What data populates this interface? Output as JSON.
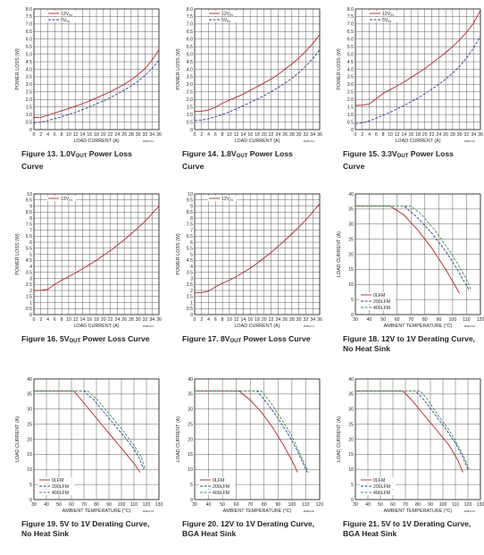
{
  "charts": [
    {
      "type": "line",
      "figure_label": "Figure 13.",
      "title_parts": [
        "1.0V",
        "OUT",
        " Power Loss Curve"
      ],
      "xlabel": "LOAD CURRENT (A)",
      "ylabel": "POWER LOSS (W)",
      "xlim": [
        0,
        36
      ],
      "ylim": [
        0,
        8
      ],
      "ystep": 0.5,
      "x_ticks": [
        0,
        2,
        4,
        6,
        8,
        10,
        12,
        14,
        16,
        18,
        20,
        22,
        24,
        26,
        28,
        30,
        32,
        34,
        36
      ],
      "y_ticks": [
        "0",
        "0.5",
        "1.0",
        "1.5",
        "2.0",
        "2.5",
        "3.0",
        "3.5",
        "4.0",
        "4.5",
        "5.0",
        "5.5",
        "6.0",
        "6.5",
        "7.0",
        "7.5",
        "8.0"
      ],
      "legend": [
        "12V",
        "5V"
      ],
      "legend_sub": "IN",
      "code": "4628A F13",
      "series": [
        {
          "name": "12VIN",
          "style": "solid",
          "color": "#b0232a",
          "x": [
            0,
            2,
            4,
            6,
            8,
            10,
            12,
            14,
            16,
            18,
            20,
            22,
            24,
            26,
            28,
            30,
            32,
            34,
            36
          ],
          "y": [
            0.8,
            0.82,
            0.95,
            1.1,
            1.25,
            1.4,
            1.55,
            1.72,
            1.9,
            2.1,
            2.3,
            2.52,
            2.75,
            3.0,
            3.3,
            3.65,
            4.05,
            4.6,
            5.3
          ]
        },
        {
          "name": "5VIN",
          "style": "dash",
          "color": "#2e3d8f",
          "x": [
            0,
            2,
            4,
            6,
            8,
            10,
            12,
            14,
            16,
            18,
            20,
            22,
            24,
            26,
            28,
            30,
            32,
            34,
            36
          ],
          "y": [
            0.45,
            0.5,
            0.6,
            0.72,
            0.85,
            1.0,
            1.15,
            1.32,
            1.5,
            1.7,
            1.9,
            2.12,
            2.36,
            2.62,
            2.9,
            3.22,
            3.6,
            4.05,
            4.6
          ]
        }
      ]
    },
    {
      "type": "line",
      "figure_label": "Figure 14.",
      "title_parts": [
        "1.8V",
        "OUT",
        " Power Loss Curve"
      ],
      "xlabel": "LOAD CURRENT (A)",
      "ylabel": "POWER LOSS (W)",
      "xlim": [
        0,
        36
      ],
      "ylim": [
        0,
        8
      ],
      "ystep": 0.5,
      "x_ticks": [
        0,
        2,
        4,
        6,
        8,
        10,
        12,
        14,
        16,
        18,
        20,
        22,
        24,
        26,
        28,
        30,
        32,
        34,
        36
      ],
      "y_ticks": [
        "0",
        "0.5",
        "1.0",
        "1.5",
        "2.0",
        "2.5",
        "3.0",
        "3.5",
        "4.0",
        "4.5",
        "5.0",
        "5.5",
        "6.0",
        "6.5",
        "7.0",
        "7.5",
        "8.0"
      ],
      "legend": [
        "12V",
        "5V"
      ],
      "legend_sub": "IN",
      "code": "4628A F14",
      "series": [
        {
          "name": "12VIN",
          "style": "solid",
          "color": "#b0232a",
          "x": [
            0,
            2,
            4,
            6,
            8,
            10,
            12,
            14,
            16,
            18,
            20,
            22,
            24,
            26,
            28,
            30,
            32,
            34,
            36
          ],
          "y": [
            1.2,
            1.22,
            1.3,
            1.48,
            1.75,
            1.95,
            2.15,
            2.35,
            2.6,
            2.85,
            3.1,
            3.35,
            3.65,
            4.0,
            4.35,
            4.75,
            5.2,
            5.7,
            6.3
          ]
        },
        {
          "name": "5VIN",
          "style": "dash",
          "color": "#2e3d8f",
          "x": [
            0,
            2,
            4,
            6,
            8,
            10,
            12,
            14,
            16,
            18,
            20,
            22,
            24,
            26,
            28,
            30,
            32,
            34,
            36
          ],
          "y": [
            0.6,
            0.63,
            0.72,
            0.85,
            1.0,
            1.18,
            1.38,
            1.58,
            1.8,
            2.02,
            2.25,
            2.5,
            2.78,
            3.08,
            3.4,
            3.78,
            4.2,
            4.7,
            5.3
          ]
        }
      ]
    },
    {
      "type": "line",
      "figure_label": "Figure 15.",
      "title_parts": [
        "3.3V",
        "OUT",
        " Power Loss Curve"
      ],
      "xlabel": "LOAD CURRENT (A)",
      "ylabel": "POWER LOSS (W)",
      "xlim": [
        0,
        36
      ],
      "ylim": [
        0,
        8
      ],
      "ystep": 0.5,
      "x_ticks": [
        0,
        2,
        4,
        6,
        8,
        10,
        12,
        14,
        16,
        18,
        20,
        22,
        24,
        26,
        28,
        30,
        32,
        34,
        36
      ],
      "y_ticks": [
        "0",
        "0.5",
        "1.0",
        "1.5",
        "2.0",
        "2.5",
        "3.0",
        "3.5",
        "4.0",
        "4.5",
        "5.0",
        "5.5",
        "6.0",
        "6.5",
        "7.0",
        "7.5",
        "8.0"
      ],
      "legend": [
        "12V",
        "5V"
      ],
      "legend_sub": "IN",
      "code": "4628A F15",
      "series": [
        {
          "name": "12VIN",
          "style": "solid",
          "color": "#b0232a",
          "x": [
            0,
            2,
            4,
            6,
            8,
            10,
            12,
            14,
            16,
            18,
            20,
            22,
            24,
            26,
            28,
            30,
            32,
            34,
            36
          ],
          "y": [
            1.6,
            1.62,
            1.7,
            2.05,
            2.4,
            2.65,
            2.9,
            3.15,
            3.45,
            3.75,
            4.05,
            4.4,
            4.75,
            5.1,
            5.5,
            5.95,
            6.45,
            7.05,
            7.9
          ]
        },
        {
          "name": "5VIN",
          "style": "dash",
          "color": "#2e3d8f",
          "x": [
            0,
            2,
            4,
            6,
            8,
            10,
            12,
            14,
            16,
            18,
            20,
            22,
            24,
            26,
            28,
            30,
            32,
            34,
            36
          ],
          "y": [
            0.4,
            0.45,
            0.58,
            0.75,
            0.95,
            1.15,
            1.38,
            1.6,
            1.85,
            2.1,
            2.38,
            2.68,
            3.0,
            3.35,
            3.75,
            4.2,
            4.75,
            5.4,
            6.2
          ]
        }
      ]
    },
    {
      "type": "line",
      "figure_label": "Figure 16.",
      "title_parts": [
        "5V",
        "OUT",
        " Power Loss Curve"
      ],
      "xlabel": "LOAD CURRENT (A)",
      "ylabel": "POWER LOSS (W)",
      "xlim": [
        0,
        36
      ],
      "ylim": [
        0,
        10
      ],
      "ystep": 0.5,
      "x_ticks": [
        0,
        2,
        4,
        6,
        8,
        10,
        12,
        14,
        16,
        18,
        20,
        22,
        24,
        26,
        28,
        30,
        32,
        34,
        36
      ],
      "y_ticks": [
        "0",
        "0.5",
        "1",
        "1.5",
        "2",
        "2.5",
        "3",
        "3.5",
        "4",
        "4.5",
        "5",
        "5.5",
        "6",
        "6.5",
        "7",
        "7.5",
        "8",
        "8.5",
        "9",
        "9.5",
        "10"
      ],
      "legend": [
        "12V"
      ],
      "legend_sub": "IN",
      "code": "4628A F16",
      "series": [
        {
          "name": "12VIN",
          "style": "solid",
          "color": "#b0232a",
          "x": [
            0,
            2,
            4,
            6,
            8,
            10,
            12,
            14,
            16,
            18,
            20,
            22,
            24,
            26,
            28,
            30,
            32,
            34,
            36
          ],
          "y": [
            2.0,
            2.0,
            2.1,
            2.5,
            2.85,
            3.15,
            3.45,
            3.8,
            4.15,
            4.5,
            4.9,
            5.3,
            5.75,
            6.2,
            6.7,
            7.2,
            7.75,
            8.35,
            9.0
          ]
        }
      ]
    },
    {
      "type": "line",
      "figure_label": "Figure 17.",
      "title_parts": [
        "8V",
        "OUT",
        " Power Loss Curve"
      ],
      "xlabel": "LOAD CURRENT (A)",
      "ylabel": "POWER LOSS (W)",
      "xlim": [
        0,
        36
      ],
      "ylim": [
        0,
        10
      ],
      "ystep": 0.5,
      "x_ticks": [
        0,
        2,
        4,
        6,
        8,
        10,
        12,
        14,
        16,
        18,
        20,
        22,
        24,
        26,
        28,
        30,
        32,
        34,
        36
      ],
      "y_ticks": [
        "0",
        "0.5",
        "1",
        "1.5",
        "2",
        "2.5",
        "3",
        "3.5",
        "4",
        "4.5",
        "5",
        "5.5",
        "6",
        "6.5",
        "7",
        "7.5",
        "8",
        "8.5",
        "9",
        "9.5",
        "10"
      ],
      "legend": [
        "12V"
      ],
      "legend_sub": "IN",
      "code": "4628A F17",
      "series": [
        {
          "name": "12VIN",
          "style": "solid",
          "color": "#b0232a",
          "x": [
            0,
            2,
            4,
            6,
            8,
            10,
            12,
            14,
            16,
            18,
            20,
            22,
            24,
            26,
            28,
            30,
            32,
            34,
            36
          ],
          "y": [
            1.8,
            1.82,
            1.95,
            2.3,
            2.6,
            2.85,
            3.15,
            3.5,
            3.85,
            4.25,
            4.7,
            5.15,
            5.65,
            6.15,
            6.7,
            7.25,
            7.85,
            8.5,
            9.2
          ]
        }
      ]
    },
    {
      "type": "line",
      "figure_label": "Figure 18.",
      "title_parts": [
        "12V to 1V Derating Curve, No Heat Sink"
      ],
      "xlabel": "AMBIENT TEMPERATURE (°C)",
      "ylabel": "LOAD CURRENT (A)",
      "xlim": [
        30,
        120
      ],
      "ylim": [
        0,
        40
      ],
      "ystep": 5,
      "x_ticks": [
        30,
        40,
        50,
        60,
        70,
        80,
        90,
        100,
        110,
        120
      ],
      "y_ticks": [
        "0",
        "5",
        "10",
        "15",
        "20",
        "25",
        "30",
        "35",
        "40"
      ],
      "legend": [
        "0LFM",
        "200LFM",
        "400LFM"
      ],
      "legend_sub": "",
      "code": "4628A F18",
      "series": [
        {
          "name": "0LFM",
          "style": "solid",
          "color": "#b0232a",
          "x": [
            30,
            55,
            65,
            75,
            85,
            95,
            100,
            105
          ],
          "y": [
            36,
            36,
            33,
            28,
            22,
            15,
            11,
            7
          ]
        },
        {
          "name": "200LFM",
          "style": "dash",
          "color": "#2e3d8f",
          "x": [
            30,
            65,
            75,
            85,
            95,
            102,
            107,
            112
          ],
          "y": [
            36,
            36,
            32,
            27,
            21,
            16,
            12,
            8
          ]
        },
        {
          "name": "400LFM",
          "style": "dash",
          "color": "#3f8f4a",
          "x": [
            30,
            70,
            78,
            88,
            98,
            104,
            109,
            113
          ],
          "y": [
            36,
            36,
            33,
            27.5,
            21,
            16.5,
            12.5,
            8.5
          ]
        }
      ]
    },
    {
      "type": "line",
      "figure_label": "Figure 19.",
      "title_parts": [
        "5V to 1V Derating Curve, No Heat Sink"
      ],
      "xlabel": "AMBIENT TEMPERATURE (°C)",
      "ylabel": "LOAD CURRENT (A)",
      "xlim": [
        30,
        130
      ],
      "ylim": [
        0,
        40
      ],
      "ystep": 5,
      "x_ticks": [
        30,
        40,
        50,
        60,
        70,
        80,
        90,
        100,
        110,
        120,
        130
      ],
      "y_ticks": [
        "0",
        "5",
        "10",
        "15",
        "20",
        "25",
        "30",
        "35",
        "40"
      ],
      "legend": [
        "0LFM",
        "200LFM",
        "400LFM"
      ],
      "legend_sub": "",
      "code": "4628A F19",
      "series": [
        {
          "name": "0LFM",
          "style": "solid",
          "color": "#b0232a",
          "x": [
            30,
            62,
            70,
            80,
            90,
            100,
            110,
            115
          ],
          "y": [
            36,
            36,
            32,
            27,
            22,
            17,
            12,
            9
          ]
        },
        {
          "name": "200LFM",
          "style": "dash",
          "color": "#2e3d8f",
          "x": [
            30,
            70,
            78,
            88,
            98,
            108,
            114,
            118
          ],
          "y": [
            36,
            36,
            33,
            28,
            23,
            18,
            14,
            10
          ]
        },
        {
          "name": "400LFM",
          "style": "dash",
          "color": "#3f8f4a",
          "x": [
            30,
            73,
            81,
            91,
            101,
            110,
            116,
            119
          ],
          "y": [
            36,
            36,
            33,
            28,
            23,
            18,
            14,
            10
          ]
        }
      ]
    },
    {
      "type": "line",
      "figure_label": "Figure 20.",
      "title_parts": [
        "12V to 1V Derating Curve, BGA Heat Sink"
      ],
      "xlabel": "AMBIENT TEMPERATURE (°C)",
      "ylabel": "LOAD CURRENT (A)",
      "xlim": [
        30,
        120
      ],
      "ylim": [
        0,
        40
      ],
      "ystep": 5,
      "x_ticks": [
        30,
        40,
        50,
        60,
        70,
        80,
        90,
        100,
        110,
        120
      ],
      "y_ticks": [
        "0",
        "5",
        "10",
        "15",
        "20",
        "25",
        "30",
        "35",
        "40"
      ],
      "legend": [
        "0LFM",
        "200LFM",
        "400LFM"
      ],
      "legend_sub": "",
      "code": "4628A F20",
      "series": [
        {
          "name": "0LFM",
          "style": "solid",
          "color": "#b0232a",
          "x": [
            30,
            62,
            70,
            78,
            86,
            94,
            100,
            104
          ],
          "y": [
            36,
            36,
            33,
            29,
            24,
            18,
            13,
            9
          ]
        },
        {
          "name": "200LFM",
          "style": "dash",
          "color": "#2e3d8f",
          "x": [
            30,
            75,
            82,
            90,
            97,
            103,
            107,
            111
          ],
          "y": [
            36,
            36,
            32,
            27,
            22,
            17,
            13,
            9
          ]
        },
        {
          "name": "400LFM",
          "style": "dash",
          "color": "#3f8f4a",
          "x": [
            30,
            78,
            85,
            92,
            99,
            104,
            108,
            112
          ],
          "y": [
            36,
            36,
            32,
            27,
            22,
            17,
            13,
            9
          ]
        }
      ]
    },
    {
      "type": "line",
      "figure_label": "Figure 21.",
      "title_parts": [
        "5V to 1V Derating Curve, BGA Heat Sink"
      ],
      "xlabel": "AMBIENT TEMPERATURE (°C)",
      "ylabel": "LOAD CURRENT (A)",
      "xlim": [
        30,
        130
      ],
      "ylim": [
        0,
        40
      ],
      "ystep": 5,
      "x_ticks": [
        30,
        40,
        50,
        60,
        70,
        80,
        90,
        100,
        110,
        120,
        130
      ],
      "y_ticks": [
        "0",
        "5",
        "10",
        "15",
        "20",
        "25",
        "30",
        "35",
        "40"
      ],
      "legend": [
        "0LFM",
        "200LFM",
        "400LFM"
      ],
      "legend_sub": "",
      "code": "4628A F21",
      "series": [
        {
          "name": "0LFM",
          "style": "solid",
          "color": "#b0232a",
          "x": [
            30,
            68,
            75,
            85,
            95,
            105,
            112,
            116
          ],
          "y": [
            36,
            36,
            33,
            28,
            23,
            18,
            13,
            9
          ]
        },
        {
          "name": "200LFM",
          "style": "dash",
          "color": "#2e3d8f",
          "x": [
            30,
            78,
            85,
            94,
            103,
            111,
            116,
            120
          ],
          "y": [
            36,
            36,
            33,
            28,
            23,
            18,
            14,
            10
          ]
        },
        {
          "name": "400LFM",
          "style": "dash",
          "color": "#3f8f4a",
          "x": [
            30,
            82,
            88,
            96,
            105,
            112,
            117,
            121
          ],
          "y": [
            36,
            36,
            33,
            28,
            23,
            18,
            14,
            10
          ]
        }
      ]
    }
  ]
}
